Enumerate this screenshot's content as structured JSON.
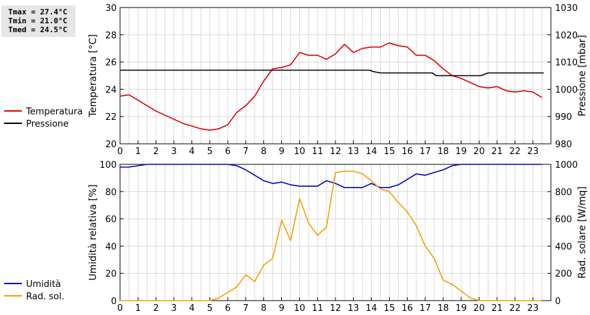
{
  "stats": [
    "Tmax = 27.4°C",
    "Tmin = 21.0°C",
    "Tmed = 24.5°C"
  ],
  "colors": {
    "temperature": "#e00000",
    "pressure": "#000000",
    "humidity": "#0000c0",
    "solar": "#f0a000",
    "grid": "#d8d8d8"
  },
  "chart_data": [
    {
      "type": "line",
      "xlim": [
        0,
        24
      ],
      "xticks": [
        0,
        1,
        2,
        3,
        4,
        5,
        6,
        7,
        8,
        9,
        10,
        11,
        12,
        13,
        14,
        15,
        16,
        17,
        18,
        19,
        20,
        21,
        22,
        23
      ],
      "grid": true,
      "legend_position": "left",
      "ylabel_left": "Temperatura [°C]",
      "ylim_left": [
        20,
        30
      ],
      "yticks_left": [
        20,
        22,
        24,
        26,
        28,
        30
      ],
      "ylabel_right": "Pressione [mbar]",
      "ylim_right": [
        980,
        1030
      ],
      "yticks_right": [
        980,
        990,
        1000,
        1010,
        1020,
        1030
      ],
      "series": [
        {
          "name": "Temperatura",
          "axis": "left",
          "x": [
            0,
            0.5,
            1,
            1.5,
            2,
            2.5,
            3,
            3.5,
            4,
            4.5,
            5,
            5.5,
            6,
            6.5,
            7,
            7.5,
            8,
            8.5,
            9,
            9.5,
            10,
            10.5,
            11,
            11.5,
            12,
            12.5,
            13,
            13.5,
            14,
            14.5,
            15,
            15.5,
            16,
            16.5,
            17,
            17.5,
            18,
            18.5,
            19,
            19.5,
            20,
            20.5,
            21,
            21.5,
            22,
            22.5,
            23,
            23.5
          ],
          "y": [
            23.5,
            23.6,
            23.2,
            22.8,
            22.4,
            22.1,
            21.8,
            21.5,
            21.3,
            21.1,
            21.0,
            21.1,
            21.4,
            22.3,
            22.8,
            23.5,
            24.6,
            25.5,
            25.6,
            25.8,
            26.7,
            26.5,
            26.5,
            26.2,
            26.6,
            27.3,
            26.7,
            27.0,
            27.1,
            27.1,
            27.4,
            27.2,
            27.1,
            26.5,
            26.5,
            26.1,
            25.5,
            25.0,
            24.8,
            24.5,
            24.2,
            24.1,
            24.2,
            23.9,
            23.8,
            23.9,
            23.8,
            23.4
          ]
        },
        {
          "name": "Pressione",
          "axis": "right",
          "x": [
            0,
            13.9,
            14.1,
            14.5,
            17.4,
            17.6,
            20.1,
            20.5,
            23.6
          ],
          "y": [
            1007,
            1007,
            1006.5,
            1006,
            1006,
            1005,
            1005,
            1006,
            1006
          ]
        }
      ]
    },
    {
      "type": "line",
      "xlim": [
        0,
        24
      ],
      "xticks": [
        0,
        1,
        2,
        3,
        4,
        5,
        6,
        7,
        8,
        9,
        10,
        11,
        12,
        13,
        14,
        15,
        16,
        17,
        18,
        19,
        20,
        21,
        22,
        23
      ],
      "grid": true,
      "legend_position": "left",
      "ylabel_left": "Umidità relativa [%]",
      "ylim_left": [
        0,
        100
      ],
      "yticks_left": [
        0,
        20,
        40,
        60,
        80,
        100
      ],
      "ylabel_right": "Rad. solare [W/mq]",
      "ylim_right": [
        0,
        1000
      ],
      "yticks_right": [
        0,
        200,
        400,
        600,
        800,
        1000
      ],
      "series": [
        {
          "name": "Umidità",
          "axis": "left",
          "x": [
            0,
            0.5,
            1,
            1.5,
            2,
            2.5,
            3,
            3.5,
            4,
            4.5,
            5,
            5.5,
            6,
            6.5,
            7,
            7.5,
            8,
            8.5,
            9,
            9.5,
            10,
            10.5,
            11,
            11.5,
            12,
            12.5,
            13,
            13.5,
            14,
            14.5,
            15,
            15.5,
            16,
            16.5,
            17,
            17.5,
            18,
            18.5,
            19,
            19.5,
            20,
            20.5,
            21,
            21.5,
            22,
            22.5,
            23,
            23.5
          ],
          "y": [
            98,
            98,
            99,
            100,
            100,
            100,
            100,
            100,
            100,
            100,
            100,
            100,
            100,
            99,
            96,
            92,
            88,
            86,
            87,
            85,
            84,
            84,
            84,
            88,
            86,
            83,
            83,
            83,
            86,
            83,
            83,
            85,
            89,
            93,
            92,
            94,
            96,
            99,
            100,
            100,
            100,
            100,
            100,
            100,
            100,
            100,
            100,
            100
          ]
        },
        {
          "name": "Rad. sol.",
          "axis": "right",
          "x": [
            0,
            0.5,
            1,
            1.5,
            2,
            2.5,
            3,
            3.5,
            4,
            4.5,
            5,
            5.5,
            6,
            6.5,
            7,
            7.5,
            8,
            8.5,
            9,
            9.5,
            10,
            10.5,
            11,
            11.5,
            12,
            12.5,
            13,
            13.5,
            14,
            14.5,
            15,
            15.5,
            16,
            16.5,
            17,
            17.5,
            18,
            18.5,
            19,
            19.5,
            20,
            20.5,
            21,
            21.5,
            22,
            22.5,
            23,
            23.5
          ],
          "y": [
            0,
            0,
            0,
            0,
            0,
            0,
            0,
            0,
            0,
            0,
            0,
            20,
            60,
            100,
            190,
            140,
            260,
            310,
            590,
            440,
            750,
            570,
            480,
            540,
            940,
            950,
            950,
            930,
            880,
            820,
            800,
            720,
            650,
            550,
            400,
            310,
            150,
            120,
            70,
            20,
            0,
            0,
            0,
            0,
            0,
            0,
            0,
            0
          ]
        }
      ]
    }
  ]
}
